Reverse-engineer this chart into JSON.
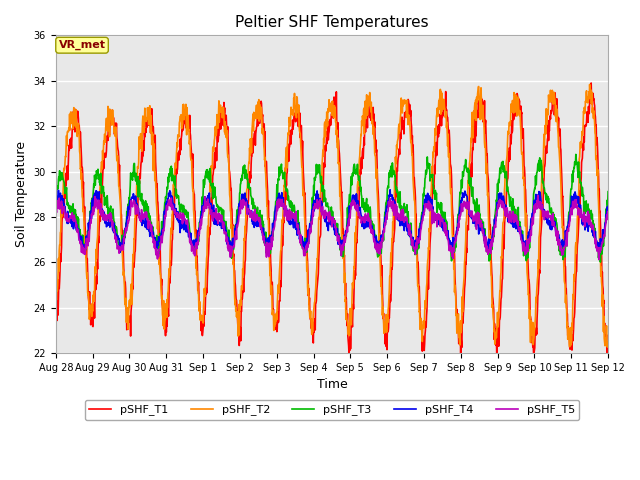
{
  "title": "Peltier SHF Temperatures",
  "xlabel": "Time",
  "ylabel": "Soil Temperature",
  "ylim": [
    22,
    36
  ],
  "yticks": [
    22,
    24,
    26,
    28,
    30,
    32,
    34,
    36
  ],
  "xtick_labels": [
    "Aug 28",
    "Aug 29",
    "Aug 30",
    "Aug 31",
    "Sep 1",
    "Sep 2",
    "Sep 3",
    "Sep 4",
    "Sep 5",
    "Sep 6",
    "Sep 7",
    "Sep 8",
    "Sep 9",
    "Sep 10",
    "Sep 11",
    "Sep 12"
  ],
  "colors": {
    "pSHF_T1": "#ff0000",
    "pSHF_T2": "#ff8800",
    "pSHF_T3": "#00bb00",
    "pSHF_T4": "#0000ee",
    "pSHF_T5": "#bb00bb"
  },
  "legend_label": "VR_met",
  "legend_box_facecolor": "#ffff99",
  "legend_box_edgecolor": "#999900",
  "legend_text_color": "#880000",
  "fig_facecolor": "#ffffff",
  "axes_facecolor": "#e8e8e8",
  "grid_color": "#ffffff",
  "spine_color": "#aaaaaa",
  "line_width": 1.2,
  "n_days": 15,
  "samples_per_day": 96,
  "T12_mean": 28.5,
  "T12_amp": 4.2,
  "T3_mean": 27.8,
  "T3_amp": 1.3,
  "T45_mean": 27.8,
  "T45_amp": 0.85,
  "title_fontsize": 11,
  "tick_fontsize": 7,
  "label_fontsize": 9
}
